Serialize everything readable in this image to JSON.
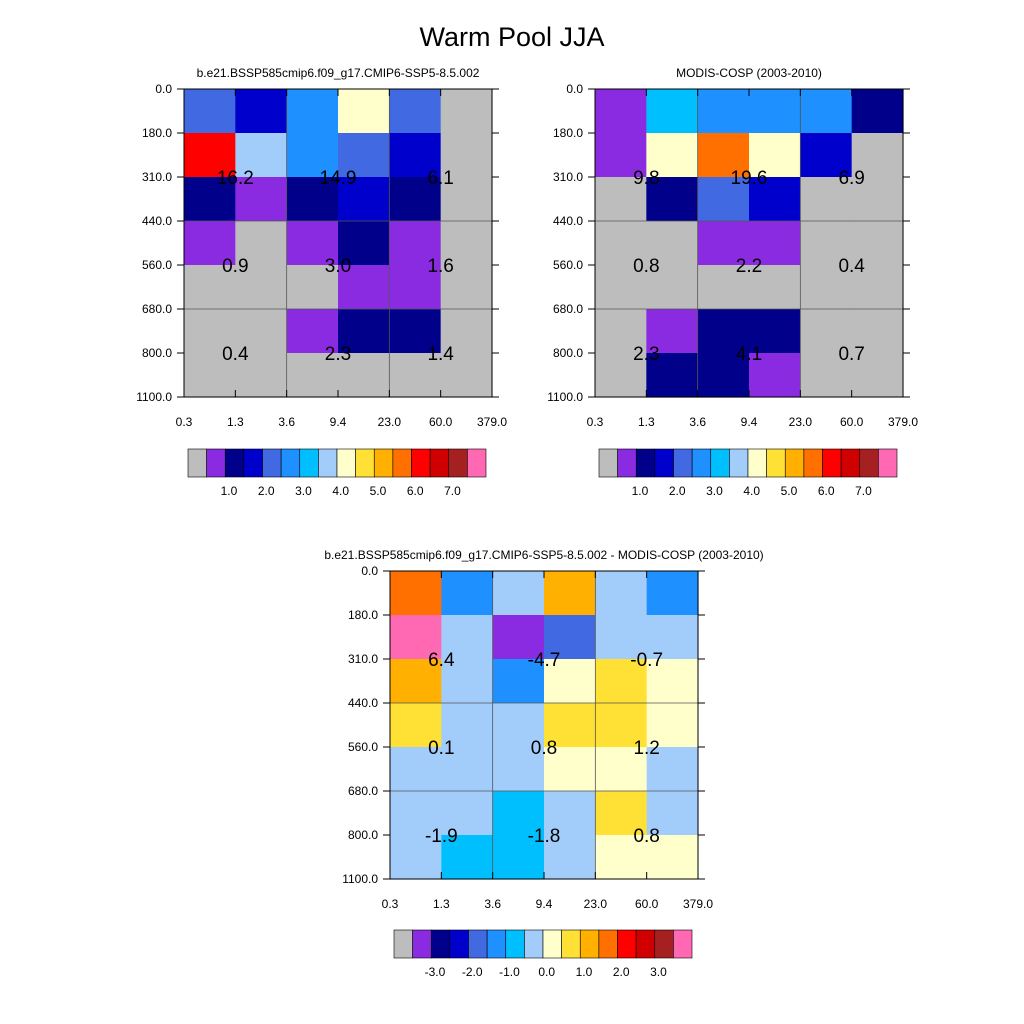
{
  "figure": {
    "title": "Warm Pool JJA"
  },
  "palettes": {
    "main": [
      "#bdbdbd",
      "#8a2be2",
      "#00008b",
      "#0000cd",
      "#4169e1",
      "#1e90ff",
      "#00bfff",
      "#a2cdfa",
      "#ffffcc",
      "#ffe135",
      "#ffb000",
      "#ff7000",
      "#ff0000",
      "#d00000",
      "#a52020",
      "#ff69b4"
    ],
    "diff": [
      "#bdbdbd",
      "#8a2be2",
      "#00008b",
      "#0000cd",
      "#4169e1",
      "#1e90ff",
      "#00bfff",
      "#a2cdfa",
      "#ffffcc",
      "#ffe135",
      "#ffb000",
      "#ff7000",
      "#ff0000",
      "#d00000",
      "#a52020",
      "#ff69b4"
    ]
  },
  "chart_data": [
    {
      "type": "heatmap",
      "title": "b.e21.BSSP585cmip6.f09_g17.CMIP6-SSP5-8.5.002",
      "x_ticks": [
        "0.3",
        "1.3",
        "3.6",
        "9.4",
        "23.0",
        "60.0",
        "379.0"
      ],
      "y_ticks": [
        "0.0",
        "180.0",
        "310.0",
        "440.0",
        "560.0",
        "680.0",
        "800.0",
        "1100.0"
      ],
      "cell_colors": [
        [
          "#4169e1",
          "#0000cd",
          "#1e90ff",
          "#ffffcc",
          "#4169e1",
          "#bdbdbd"
        ],
        [
          "#ff0000",
          "#a2cdfa",
          "#1e90ff",
          "#4169e1",
          "#0000cd",
          "#bdbdbd"
        ],
        [
          "#00008b",
          "#8a2be2",
          "#00008b",
          "#0000cd",
          "#00008b",
          "#bdbdbd"
        ],
        [
          "#8a2be2",
          "#bdbdbd",
          "#8a2be2",
          "#00008b",
          "#8a2be2",
          "#bdbdbd"
        ],
        [
          "#bdbdbd",
          "#bdbdbd",
          "#bdbdbd",
          "#8a2be2",
          "#8a2be2",
          "#bdbdbd"
        ],
        [
          "#bdbdbd",
          "#bdbdbd",
          "#8a2be2",
          "#00008b",
          "#00008b",
          "#bdbdbd"
        ],
        [
          "#bdbdbd",
          "#bdbdbd",
          "#bdbdbd",
          "#bdbdbd",
          "#bdbdbd",
          "#bdbdbd"
        ]
      ],
      "annotations": [
        [
          "16.2",
          "14.9",
          "6.1"
        ],
        [
          "0.9",
          "3.0",
          "1.6"
        ],
        [
          "0.4",
          "2.3",
          "1.4"
        ]
      ],
      "colorbar": {
        "palette": "main",
        "labels": [
          "1.0",
          "2.0",
          "3.0",
          "4.0",
          "5.0",
          "6.0",
          "7.0"
        ]
      }
    },
    {
      "type": "heatmap",
      "title": "MODIS-COSP (2003-2010)",
      "x_ticks": [
        "0.3",
        "1.3",
        "3.6",
        "9.4",
        "23.0",
        "60.0",
        "379.0"
      ],
      "y_ticks": [
        "0.0",
        "180.0",
        "310.0",
        "440.0",
        "560.0",
        "680.0",
        "800.0",
        "1100.0"
      ],
      "cell_colors": [
        [
          "#8a2be2",
          "#00bfff",
          "#1e90ff",
          "#1e90ff",
          "#1e90ff",
          "#00008b"
        ],
        [
          "#8a2be2",
          "#ffffcc",
          "#ff7000",
          "#ffffcc",
          "#0000cd",
          "#bdbdbd"
        ],
        [
          "#bdbdbd",
          "#00008b",
          "#4169e1",
          "#0000cd",
          "#bdbdbd",
          "#bdbdbd"
        ],
        [
          "#bdbdbd",
          "#bdbdbd",
          "#8a2be2",
          "#8a2be2",
          "#bdbdbd",
          "#bdbdbd"
        ],
        [
          "#bdbdbd",
          "#bdbdbd",
          "#bdbdbd",
          "#bdbdbd",
          "#bdbdbd",
          "#bdbdbd"
        ],
        [
          "#bdbdbd",
          "#8a2be2",
          "#00008b",
          "#00008b",
          "#bdbdbd",
          "#bdbdbd"
        ],
        [
          "#bdbdbd",
          "#00008b",
          "#00008b",
          "#8a2be2",
          "#bdbdbd",
          "#bdbdbd"
        ]
      ],
      "annotations": [
        [
          "9.8",
          "19.6",
          "6.9"
        ],
        [
          "0.8",
          "2.2",
          "0.4"
        ],
        [
          "2.3",
          "4.1",
          "0.7"
        ]
      ],
      "colorbar": {
        "palette": "main",
        "labels": [
          "1.0",
          "2.0",
          "3.0",
          "4.0",
          "5.0",
          "6.0",
          "7.0"
        ]
      }
    },
    {
      "type": "heatmap",
      "title": "b.e21.BSSP585cmip6.f09_g17.CMIP6-SSP5-8.5.002 - MODIS-COSP (2003-2010)",
      "x_ticks": [
        "0.3",
        "1.3",
        "3.6",
        "9.4",
        "23.0",
        "60.0",
        "379.0"
      ],
      "y_ticks": [
        "0.0",
        "180.0",
        "310.0",
        "440.0",
        "560.0",
        "680.0",
        "800.0",
        "1100.0"
      ],
      "cell_colors": [
        [
          "#ff7000",
          "#1e90ff",
          "#a2cdfa",
          "#ffb000",
          "#a2cdfa",
          "#1e90ff"
        ],
        [
          "#ff69b4",
          "#a2cdfa",
          "#8a2be2",
          "#4169e1",
          "#a2cdfa",
          "#a2cdfa"
        ],
        [
          "#ffb000",
          "#a2cdfa",
          "#1e90ff",
          "#ffffcc",
          "#ffe135",
          "#ffffcc"
        ],
        [
          "#ffe135",
          "#a2cdfa",
          "#a2cdfa",
          "#ffe135",
          "#ffe135",
          "#ffffcc"
        ],
        [
          "#a2cdfa",
          "#a2cdfa",
          "#a2cdfa",
          "#ffffcc",
          "#ffffcc",
          "#a2cdfa"
        ],
        [
          "#a2cdfa",
          "#a2cdfa",
          "#00bfff",
          "#a2cdfa",
          "#ffe135",
          "#a2cdfa"
        ],
        [
          "#a2cdfa",
          "#00bfff",
          "#00bfff",
          "#a2cdfa",
          "#ffffcc",
          "#ffffcc"
        ]
      ],
      "annotations": [
        [
          "6.4",
          "-4.7",
          "-0.7"
        ],
        [
          "0.1",
          "0.8",
          "1.2"
        ],
        [
          "-1.9",
          "-1.8",
          "0.8"
        ]
      ],
      "colorbar": {
        "palette": "diff",
        "labels": [
          "-3.0",
          "-2.0",
          "-1.0",
          "0.0",
          "1.0",
          "2.0",
          "3.0"
        ]
      }
    }
  ]
}
